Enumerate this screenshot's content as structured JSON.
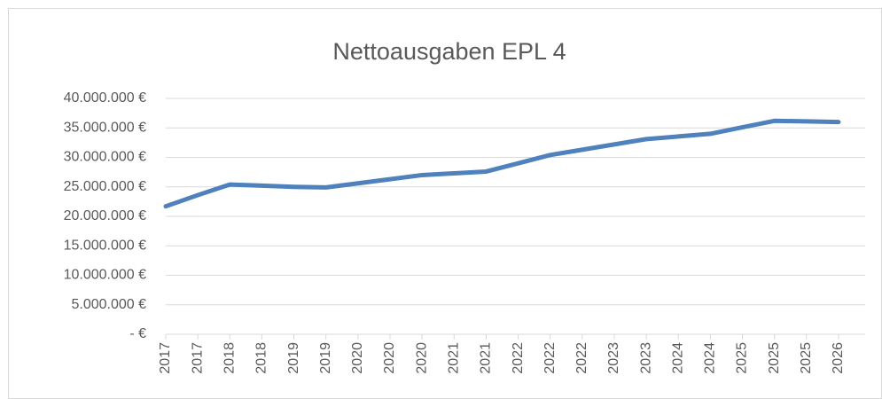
{
  "chart_data": {
    "type": "line",
    "title": "Nettoausgaben EPL 4",
    "categories": [
      "2017",
      "2017",
      "2018",
      "2018",
      "2019",
      "2019",
      "2020",
      "2020",
      "2020",
      "2021",
      "2021",
      "2022",
      "2022",
      "2022",
      "2023",
      "2023",
      "2024",
      "2024",
      "2025",
      "2025",
      "2025",
      "2026"
    ],
    "series": [
      {
        "name": "Nettoausgaben",
        "color": "#4f81bd",
        "values": [
          21700000,
          23600000,
          25400000,
          25200000,
          25000000,
          24900000,
          25600000,
          26300000,
          27000000,
          27300000,
          27600000,
          29000000,
          30400000,
          31300000,
          32200000,
          33100000,
          33550000,
          34000000,
          35100000,
          36200000,
          36100000,
          36000000
        ]
      }
    ],
    "ylim": [
      0,
      40000000
    ],
    "yticks": [
      {
        "value": 0,
        "label": "-   €"
      },
      {
        "value": 5000000,
        "label": "5.000.000 €"
      },
      {
        "value": 10000000,
        "label": "10.000.000 €"
      },
      {
        "value": 15000000,
        "label": "15.000.000 €"
      },
      {
        "value": 20000000,
        "label": "20.000.000 €"
      },
      {
        "value": 25000000,
        "label": "25.000.000 €"
      },
      {
        "value": 30000000,
        "label": "30.000.000 €"
      },
      {
        "value": 35000000,
        "label": "35.000.000 €"
      },
      {
        "value": 40000000,
        "label": "40.000.000 €"
      }
    ],
    "grid": true
  }
}
